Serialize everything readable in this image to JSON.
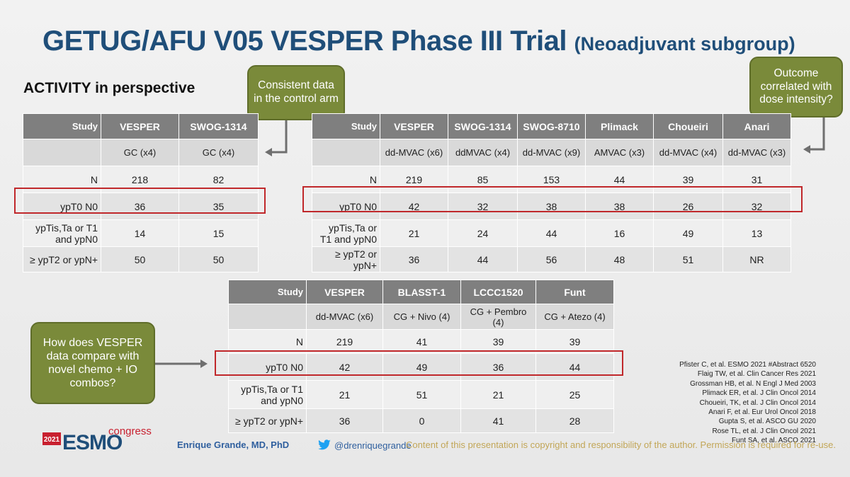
{
  "title": "GETUG/AFU V05 VESPER Phase III Trial",
  "subtitle": "(Neoadjuvant subgroup)",
  "section_heading": "ACTIVITY in perspective",
  "callouts": {
    "control_arm": "Consistent data in the control arm",
    "dose_intensity": "Outcome correlated with dose intensity?",
    "novel_combos": "How does VESPER data compare with novel chemo + IO combos?"
  },
  "table1": {
    "header": [
      "Study",
      "VESPER",
      "SWOG-1314"
    ],
    "regimens": [
      "",
      "GC (x4)",
      "GC (x4)"
    ],
    "rows": [
      [
        "N",
        "218",
        "82"
      ],
      [
        "ypT0 N0",
        "36",
        "35"
      ],
      [
        "ypTis,Ta or T1 and ypN0",
        "14",
        "15"
      ],
      [
        "≥ ypT2 or ypN+",
        "50",
        "50"
      ]
    ]
  },
  "table2": {
    "header": [
      "Study",
      "VESPER",
      "SWOG-1314",
      "SWOG-8710",
      "Plimack",
      "Choueiri",
      "Anari"
    ],
    "regimens": [
      "",
      "dd-MVAC (x6)",
      "ddMVAC (x4)",
      "dd-MVAC (x9)",
      "AMVAC (x3)",
      "dd-MVAC (x4)",
      "dd-MVAC (x3)"
    ],
    "rows": [
      [
        "N",
        "219",
        "85",
        "153",
        "44",
        "39",
        "31"
      ],
      [
        "ypT0 N0",
        "42",
        "32",
        "38",
        "38",
        "26",
        "32"
      ],
      [
        "ypTis,Ta or T1 and ypN0",
        "21",
        "24",
        "44",
        "16",
        "49",
        "13"
      ],
      [
        "≥ ypT2 or ypN+",
        "36",
        "44",
        "56",
        "48",
        "51",
        "NR"
      ]
    ]
  },
  "table3": {
    "header": [
      "Study",
      "VESPER",
      "BLASST-1",
      "LCCC1520",
      "Funt"
    ],
    "regimens": [
      "",
      "dd-MVAC (x6)",
      "CG + Nivo (4)",
      "CG + Pembro (4)",
      "CG + Atezo (4)"
    ],
    "rows": [
      [
        "N",
        "219",
        "41",
        "39",
        "39"
      ],
      [
        "ypT0 N0",
        "42",
        "49",
        "36",
        "44"
      ],
      [
        "ypTis,Ta or T1 and ypN0",
        "21",
        "51",
        "21",
        "25"
      ],
      [
        "≥ ypT2 or ypN+",
        "36",
        "0",
        "41",
        "28"
      ]
    ]
  },
  "references": [
    "Pfister C, et al. ESMO 2021 #Abstract 6520",
    "Flaig TW, et al. Clin Cancer Res 2021",
    "Grossman HB, et al. N Engl J Med 2003",
    "Plimack ER, et al. J Clin Oncol 2014",
    "Choueiri, TK, et al. J Clin Oncol 2014",
    "Anari F, et al. Eur Urol Oncol 2018",
    "Gupta S, et al. ASCO GU 2020",
    "Rose TL, et al. J Clin Oncol 2021",
    "Funt SA, et al. ASCO 2021"
  ],
  "footer": {
    "logo_year": "2021",
    "logo_text": "ESMO",
    "logo_suffix": "congress",
    "author": "Enrique Grande, MD, PhD",
    "twitter": "@drenriquegrande",
    "copyright": "Content of this presentation is copyright and responsibility of the author. Permission is required for re-use."
  },
  "colors": {
    "title": "#1f4e79",
    "callout": "#7a8a3a",
    "table_header": "#7f7f7f",
    "highlight_box": "#c0282b",
    "esmo_red": "#c8202f"
  }
}
